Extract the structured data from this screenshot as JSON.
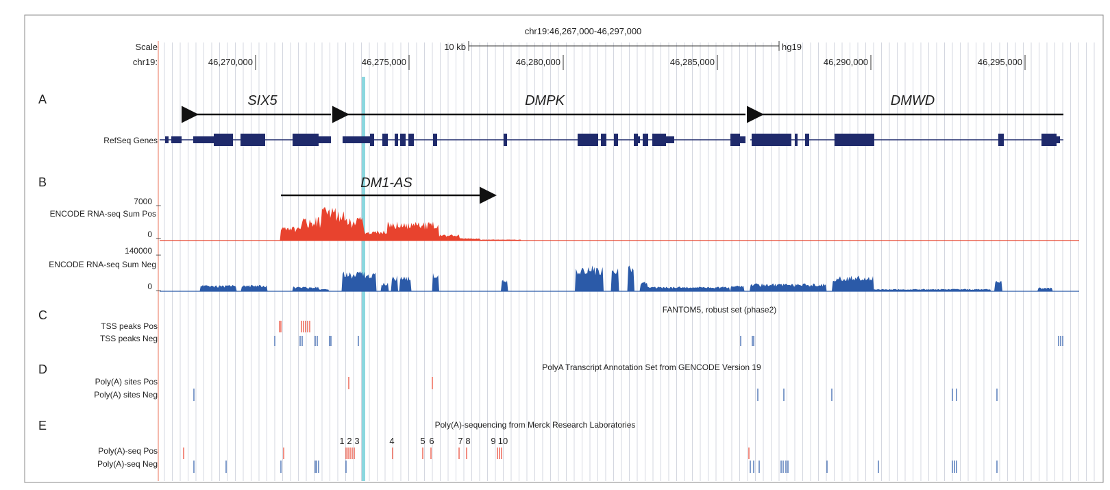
{
  "header": {
    "position": "chr19:46,267,000-46,297,000",
    "scale_label": "Scale",
    "chrom_label": "chr19:",
    "scalebar_label": "10 kb",
    "assembly": "hg19",
    "ticks": [
      "46,270,000",
      "46,275,000",
      "46,280,000",
      "46,285,000",
      "46,290,000",
      "46,295,000"
    ]
  },
  "panels": {
    "A": "A",
    "B": "B",
    "C": "C",
    "D": "D",
    "E": "E"
  },
  "genes": {
    "track_label": "RefSeq Genes",
    "six5": "SIX5",
    "dmpk": "DMPK",
    "dmwd": "DMWD",
    "dm1as": "DM1-AS"
  },
  "rnaseq": {
    "pos_label": "ENCODE RNA-seq Sum Pos",
    "pos_max": "7000",
    "pos_min": "0",
    "neg_label": "ENCODE RNA-seq Sum Neg",
    "neg_max": "140000",
    "neg_min": "0"
  },
  "fantom": {
    "title": "FANTOM5, robust set (phase2)",
    "pos_label": "TSS peaks Pos",
    "neg_label": "TSS peaks Neg"
  },
  "polya": {
    "title": "PolyA Transcript Annotation Set from GENCODE Version 19",
    "pos_label": "Poly(A) sites Pos",
    "neg_label": "Poly(A) sites Neg"
  },
  "polyaseq": {
    "title": "Poly(A)-sequencing from Merck Research Laboratories",
    "pos_label": "Poly(A)-seq Pos",
    "neg_label": "Poly(A)-seq Neg",
    "site_numbers": [
      "1",
      "2",
      "3",
      "4",
      "5",
      "6",
      "7",
      "8",
      "9",
      "10"
    ]
  },
  "colors": {
    "gene": "#1f2a6b",
    "pos_signal": "#e8432e",
    "neg_signal": "#2b5aa8",
    "highlight": "#7fd3dc",
    "grid": "#c9cdd8"
  }
}
